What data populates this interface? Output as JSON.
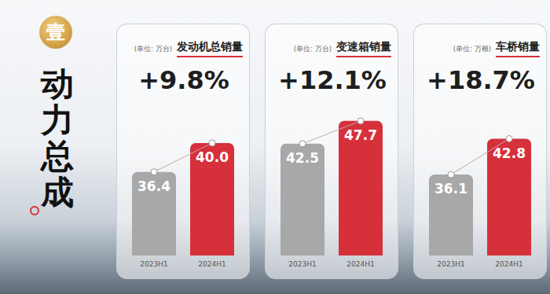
{
  "section": {
    "badge": "壹",
    "title": "动力总成"
  },
  "chart_data": [
    {
      "type": "bar",
      "title": "发动机总销量",
      "subtitle": "(单位: 万台)",
      "annotation": "+9.8%",
      "categories": [
        "2023H1",
        "2024H1"
      ],
      "values": [
        36.4,
        40.0
      ],
      "value_labels": [
        "36.4",
        "40.0"
      ],
      "colors": [
        "#a8a8a8",
        "#d6303b"
      ],
      "ylim": [
        26,
        44
      ],
      "data_labels": true,
      "tick_labels": "x"
    },
    {
      "type": "bar",
      "title": "变速箱销量",
      "subtitle": "(单位: 万台)",
      "annotation": "+12.1%",
      "categories": [
        "2023H1",
        "2024H1"
      ],
      "values": [
        42.5,
        47.7
      ],
      "value_labels": [
        "42.5",
        "47.7"
      ],
      "colors": [
        "#a8a8a8",
        "#d6303b"
      ],
      "ylim": [
        17,
        50
      ],
      "data_labels": true,
      "tick_labels": "x"
    },
    {
      "type": "bar",
      "title": "车桥销量",
      "subtitle": "(单位: 万根)",
      "annotation": "+18.7%",
      "categories": [
        "2023H1",
        "2024H1"
      ],
      "values": [
        36.1,
        42.8
      ],
      "value_labels": [
        "36.1",
        "42.8"
      ],
      "colors": [
        "#a8a8a8",
        "#d6303b"
      ],
      "ylim": [
        21,
        48
      ],
      "data_labels": true,
      "tick_labels": "x"
    }
  ]
}
